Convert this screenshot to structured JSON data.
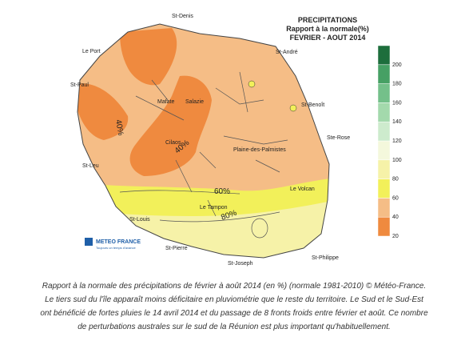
{
  "header": {
    "title": "PRECIPITATIONS",
    "subtitle": "Rapport à la normale(%)",
    "period": "FEVRIER - AOUT 2014"
  },
  "legend": {
    "ticks": [
      20,
      40,
      60,
      80,
      100,
      120,
      140,
      160,
      180,
      200
    ],
    "colors": [
      "#ef8a3f",
      "#f5bd86",
      "#f2f05a",
      "#f6f2a8",
      "#f4f8dc",
      "#cdebcd",
      "#a3d9ac",
      "#74c08a",
      "#46a064",
      "#1d6e3c"
    ]
  },
  "places": [
    "St-Denis",
    "Le Port",
    "St-André",
    "St-Paul",
    "Mafate",
    "Salazie",
    "St-Benoît",
    "Cilaos",
    "Plaine-des-Palmistes",
    "Ste-Rose",
    "St-Leu",
    "Le Volcan",
    "Le Tampon",
    "St-Louis",
    "St-Pierre",
    "St-Joseph",
    "St-Philippe"
  ],
  "contour_labels": [
    "40%",
    "40%",
    "60%",
    "80%"
  ],
  "logo": {
    "name": "METEO FRANCE",
    "tagline": "Toujours un temps d'avance"
  },
  "caption": [
    "Rapport à la normale des précipitations de février à août 2014 (en %) (normale 1981-2010) © Météo-France.",
    "Le tiers sud du l'île apparaît moins déficitaire en pluviométrie que le reste du territoire. Le Sud et le Sud-Est",
    "ont bénéficié de fortes pluies le 14 avril 2014 et du passage de 8 fronts froids entre février et août. Ce nombre",
    "de perturbations australes sur le sud de la Réunion est plus important qu'habituellement."
  ]
}
